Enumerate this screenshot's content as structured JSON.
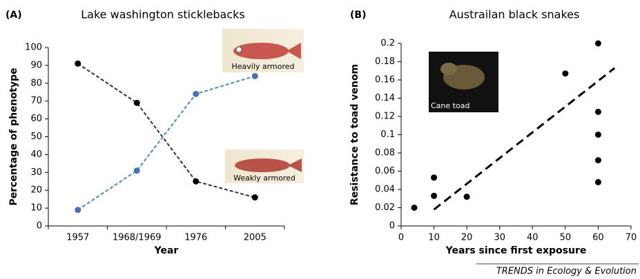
{
  "chart_data": [
    {
      "type": "line",
      "panel_label": "(A)",
      "title": "Lake washington sticklebacks",
      "xlabel": "Year",
      "ylabel": "Percentage of phenotype",
      "categories": [
        "1957",
        "1968/1969",
        "1976",
        "2005"
      ],
      "series": [
        {
          "color": "#333333",
          "values": [
            91,
            69,
            25,
            16
          ]
        },
        {
          "color": "#4a86c8",
          "values": [
            9,
            31,
            74,
            84
          ]
        }
      ],
      "ylim": [
        0,
        100
      ],
      "yticks": [
        0,
        10,
        20,
        30,
        40,
        50,
        60,
        70,
        80,
        90,
        100
      ],
      "annotations": [
        "Heavily armored",
        "Weakly armored"
      ]
    },
    {
      "type": "scatter",
      "panel_label": "(B)",
      "title": "Austrailan black snakes",
      "xlabel": "Years since first exposure",
      "ylabel": "Resistance to toad venom",
      "x": [
        4,
        10,
        10,
        20,
        50,
        60,
        60,
        60,
        60,
        60
      ],
      "values": [
        0.02,
        0.053,
        0.033,
        0.032,
        0.167,
        0.2,
        0.125,
        0.1,
        0.072,
        0.048
      ],
      "color": "#000000",
      "trendline": {
        "x": [
          10,
          65
        ],
        "values": [
          0.018,
          0.173
        ]
      },
      "xlim": [
        0,
        70
      ],
      "xticks": [
        0,
        10,
        20,
        30,
        40,
        50,
        60,
        70
      ],
      "ylim": [
        0,
        0.2
      ],
      "yticks": [
        0,
        0.02,
        0.04,
        0.06,
        0.08,
        0.1,
        0.12,
        0.14,
        0.16,
        0.18,
        0.2
      ],
      "annotations": [
        "Cane toad"
      ]
    }
  ],
  "figure": {
    "footer": "TRENDS in Ecology & Evolution"
  }
}
